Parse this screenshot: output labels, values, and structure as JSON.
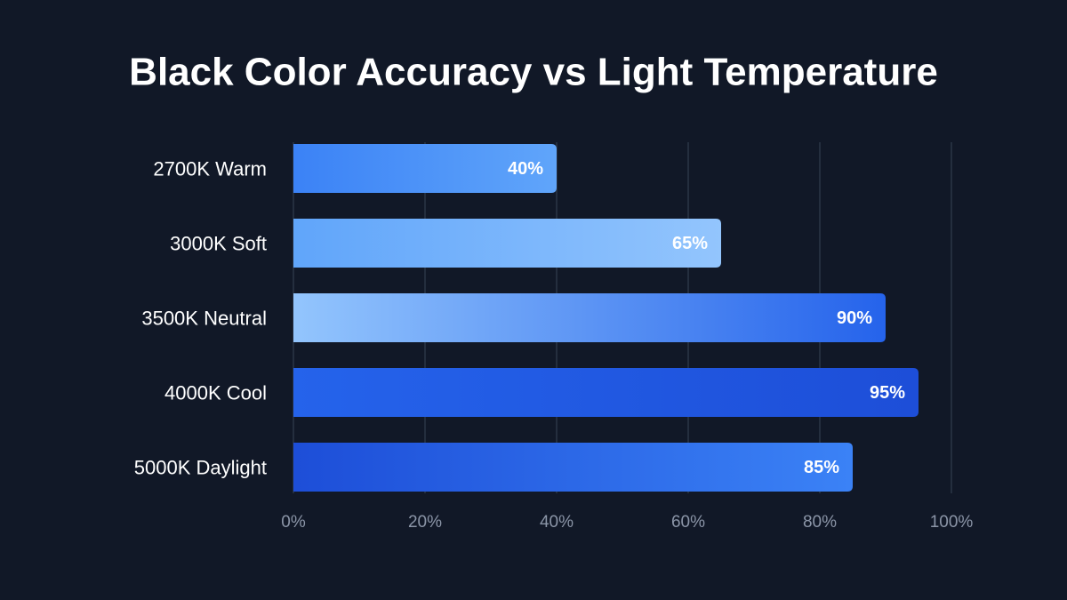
{
  "chart_data": {
    "type": "bar",
    "orientation": "horizontal",
    "title": "Black Color Accuracy vs Light Temperature",
    "categories": [
      "2700K Warm",
      "3000K Soft",
      "3500K Neutral",
      "4000K Cool",
      "5000K Daylight"
    ],
    "values": [
      40,
      65,
      90,
      95,
      85
    ],
    "value_labels": [
      "40%",
      "65%",
      "90%",
      "95%",
      "85%"
    ],
    "colors": [
      [
        "#3b82f6",
        "#60a5fa"
      ],
      [
        "#60a5fa",
        "#93c5fd"
      ],
      [
        "#93c5fd",
        "#2563eb"
      ],
      [
        "#2563eb",
        "#1d4ed8"
      ],
      [
        "#1d4ed8",
        "#3b82f6"
      ]
    ],
    "xlim": [
      0,
      100
    ],
    "xticks": [
      {
        "value": 0,
        "label": "0%"
      },
      {
        "value": 20,
        "label": "20%"
      },
      {
        "value": 40,
        "label": "40%"
      },
      {
        "value": 60,
        "label": "60%"
      },
      {
        "value": 80,
        "label": "80%"
      },
      {
        "value": 100,
        "label": "100%"
      }
    ],
    "grid": true
  }
}
